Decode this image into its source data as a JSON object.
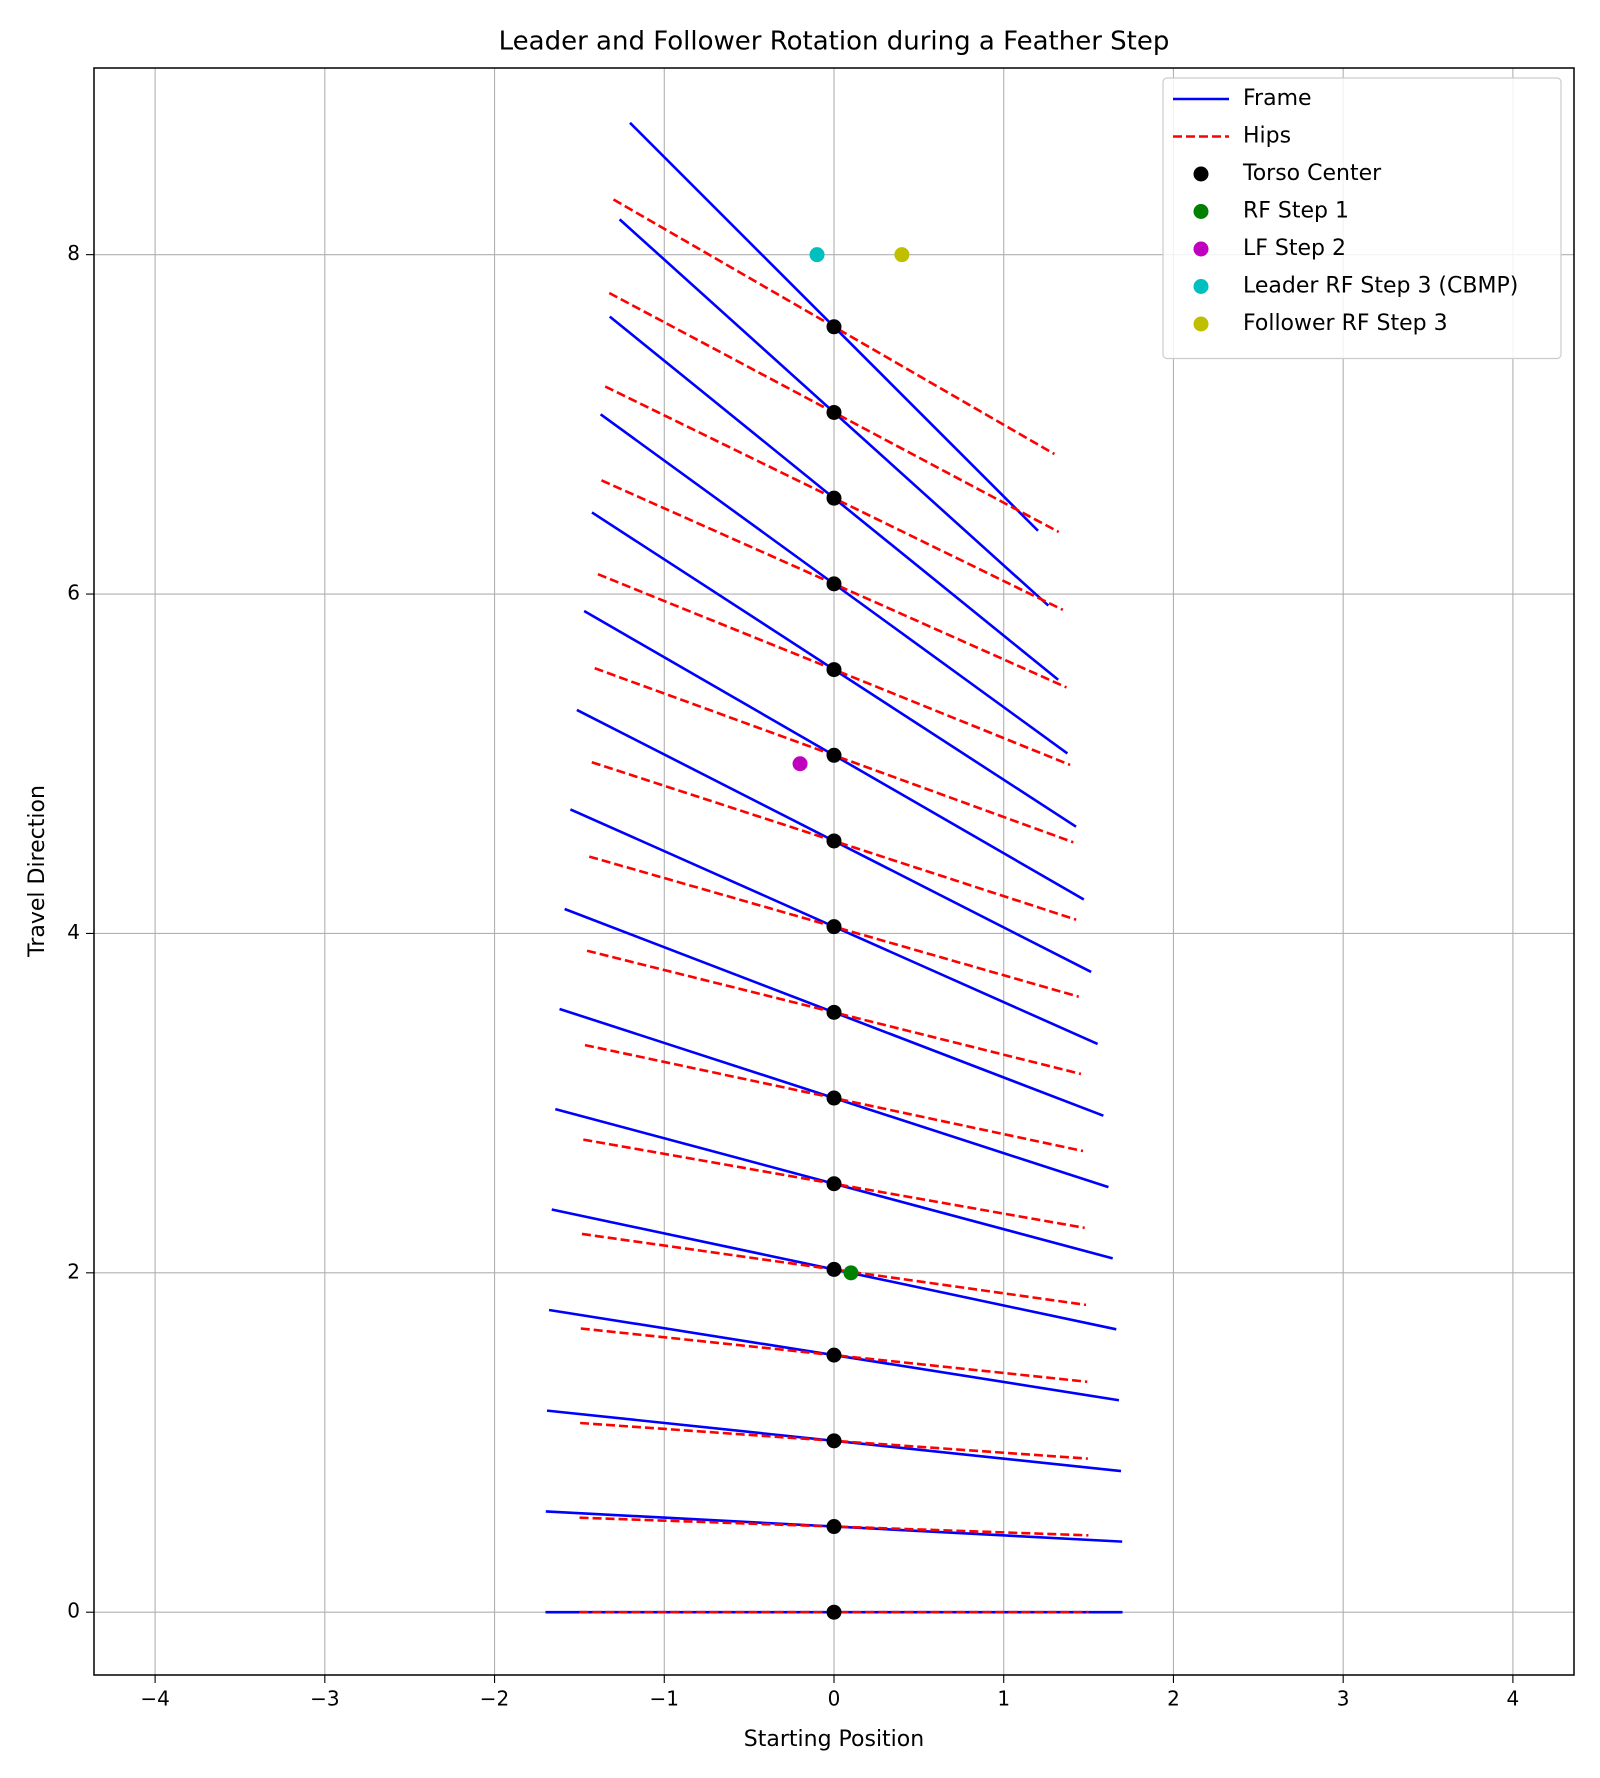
{
  "chart_data": {
    "type": "segments",
    "title": "Leader and Follower Rotation during a Feather Step",
    "x_label": "Starting Position",
    "y_label": "Travel Direction",
    "xlim": [
      -4.36,
      4.36
    ],
    "ylim": [
      -0.37,
      9.1
    ],
    "xticks": [
      {
        "value": -4,
        "label": "−4"
      },
      {
        "value": -3,
        "label": "−3"
      },
      {
        "value": -2,
        "label": "−2"
      },
      {
        "value": -1,
        "label": "−1"
      },
      0,
      1,
      2,
      3,
      4
    ],
    "yticks": [
      0,
      2,
      4,
      6,
      8
    ],
    "grid": true,
    "legend": "upper right",
    "series": [
      {
        "name": "Frame",
        "color": "#0000ff",
        "style": "solid",
        "segments": [
          {
            "x": [
              -1.7,
              1.7
            ],
            "y": [
              0,
              0
            ]
          },
          {
            "x": [
              -1.698,
              1.698
            ],
            "y": [
              0.594,
              0.416
            ]
          },
          {
            "x": [
              -1.691,
              1.691
            ],
            "y": [
              1.188,
              0.832
            ]
          },
          {
            "x": [
              -1.679,
              1.679
            ],
            "y": [
              1.781,
              1.249
            ]
          },
          {
            "x": [
              -1.663,
              1.663
            ],
            "y": [
              2.373,
              1.667
            ]
          },
          {
            "x": [
              -1.642,
              1.642
            ],
            "y": [
              2.965,
              2.085
            ]
          },
          {
            "x": [
              -1.617,
              1.617
            ],
            "y": [
              3.555,
              2.505
            ]
          },
          {
            "x": [
              -1.587,
              1.587
            ],
            "y": [
              4.144,
              2.926
            ]
          },
          {
            "x": [
              -1.553,
              1.553
            ],
            "y": [
              4.731,
              3.349
            ]
          },
          {
            "x": [
              -1.515,
              1.515
            ],
            "y": [
              5.317,
              3.773
            ]
          },
          {
            "x": [
              -1.472,
              1.472
            ],
            "y": [
              5.9,
              4.2
            ]
          },
          {
            "x": [
              -1.426,
              1.426
            ],
            "y": [
              6.481,
              4.629
            ]
          },
          {
            "x": [
              -1.375,
              1.375
            ],
            "y": [
              7.059,
              5.061
            ]
          },
          {
            "x": [
              -1.321,
              1.321
            ],
            "y": [
              7.635,
              5.495
            ]
          },
          {
            "x": [
              -1.263,
              1.263
            ],
            "y": [
              8.208,
              5.932
            ]
          },
          {
            "x": [
              -1.202,
              1.202
            ],
            "y": [
              8.777,
              6.373
            ]
          }
        ]
      },
      {
        "name": "Hips",
        "color": "#ff0000",
        "style": "dashed",
        "segments": [
          {
            "x": [
              -1.5,
              1.5
            ],
            "y": [
              0,
              0
            ]
          },
          {
            "x": [
              -1.499,
              1.499
            ],
            "y": [
              0.557,
              0.453
            ]
          },
          {
            "x": [
              -1.496,
              1.496
            ],
            "y": [
              1.115,
              0.905
            ]
          },
          {
            "x": [
              -1.492,
              1.492
            ],
            "y": [
              1.672,
              1.358
            ]
          },
          {
            "x": [
              -1.485,
              1.485
            ],
            "y": [
              2.229,
              1.811
            ]
          },
          {
            "x": [
              -1.477,
              1.477
            ],
            "y": [
              2.785,
              2.265
            ]
          },
          {
            "x": [
              -1.467,
              1.467
            ],
            "y": [
              3.342,
              2.718
            ]
          },
          {
            "x": [
              -1.455,
              1.455
            ],
            "y": [
              3.898,
              3.172
            ]
          },
          {
            "x": [
              -1.442,
              1.442
            ],
            "y": [
              4.453,
              3.627
            ]
          },
          {
            "x": [
              -1.427,
              1.427
            ],
            "y": [
              5.009,
              4.081
            ]
          },
          {
            "x": [
              -1.41,
              1.41
            ],
            "y": [
              5.563,
              4.537
            ]
          },
          {
            "x": [
              -1.391,
              1.391
            ],
            "y": [
              6.117,
              4.993
            ]
          },
          {
            "x": [
              -1.37,
              1.37
            ],
            "y": [
              6.67,
              5.45
            ]
          },
          {
            "x": [
              -1.348,
              1.348
            ],
            "y": [
              7.223,
              5.907
            ]
          },
          {
            "x": [
              -1.324,
              1.324
            ],
            "y": [
              7.774,
              6.366
            ]
          },
          {
            "x": [
              -1.299,
              1.299
            ],
            "y": [
              8.325,
              6.825
            ]
          }
        ]
      },
      {
        "name": "Torso Center",
        "color": "#000000",
        "marker": "o",
        "x": [
          0,
          0,
          0,
          0,
          0,
          0,
          0,
          0,
          0,
          0,
          0,
          0,
          0,
          0,
          0,
          0
        ],
        "y": [
          0,
          0.505,
          1.01,
          1.515,
          2.02,
          2.525,
          3.03,
          3.535,
          4.04,
          4.545,
          5.05,
          5.555,
          6.06,
          6.565,
          7.07,
          7.575
        ]
      },
      {
        "name": "RF Step 1",
        "color": "#008000",
        "marker": "o",
        "x": [
          0.1
        ],
        "y": [
          2
        ]
      },
      {
        "name": "LF Step 2",
        "color": "#bf00bf",
        "marker": "o",
        "x": [
          -0.2
        ],
        "y": [
          5
        ]
      },
      {
        "name": "Leader RF Step 3 (CBMP)",
        "color": "#00bfbf",
        "marker": "o",
        "x": [
          -0.1
        ],
        "y": [
          8
        ]
      },
      {
        "name": "Follower RF Step 3",
        "color": "#bfbf00",
        "marker": "o",
        "x": [
          0.4
        ],
        "y": [
          8
        ]
      }
    ]
  }
}
